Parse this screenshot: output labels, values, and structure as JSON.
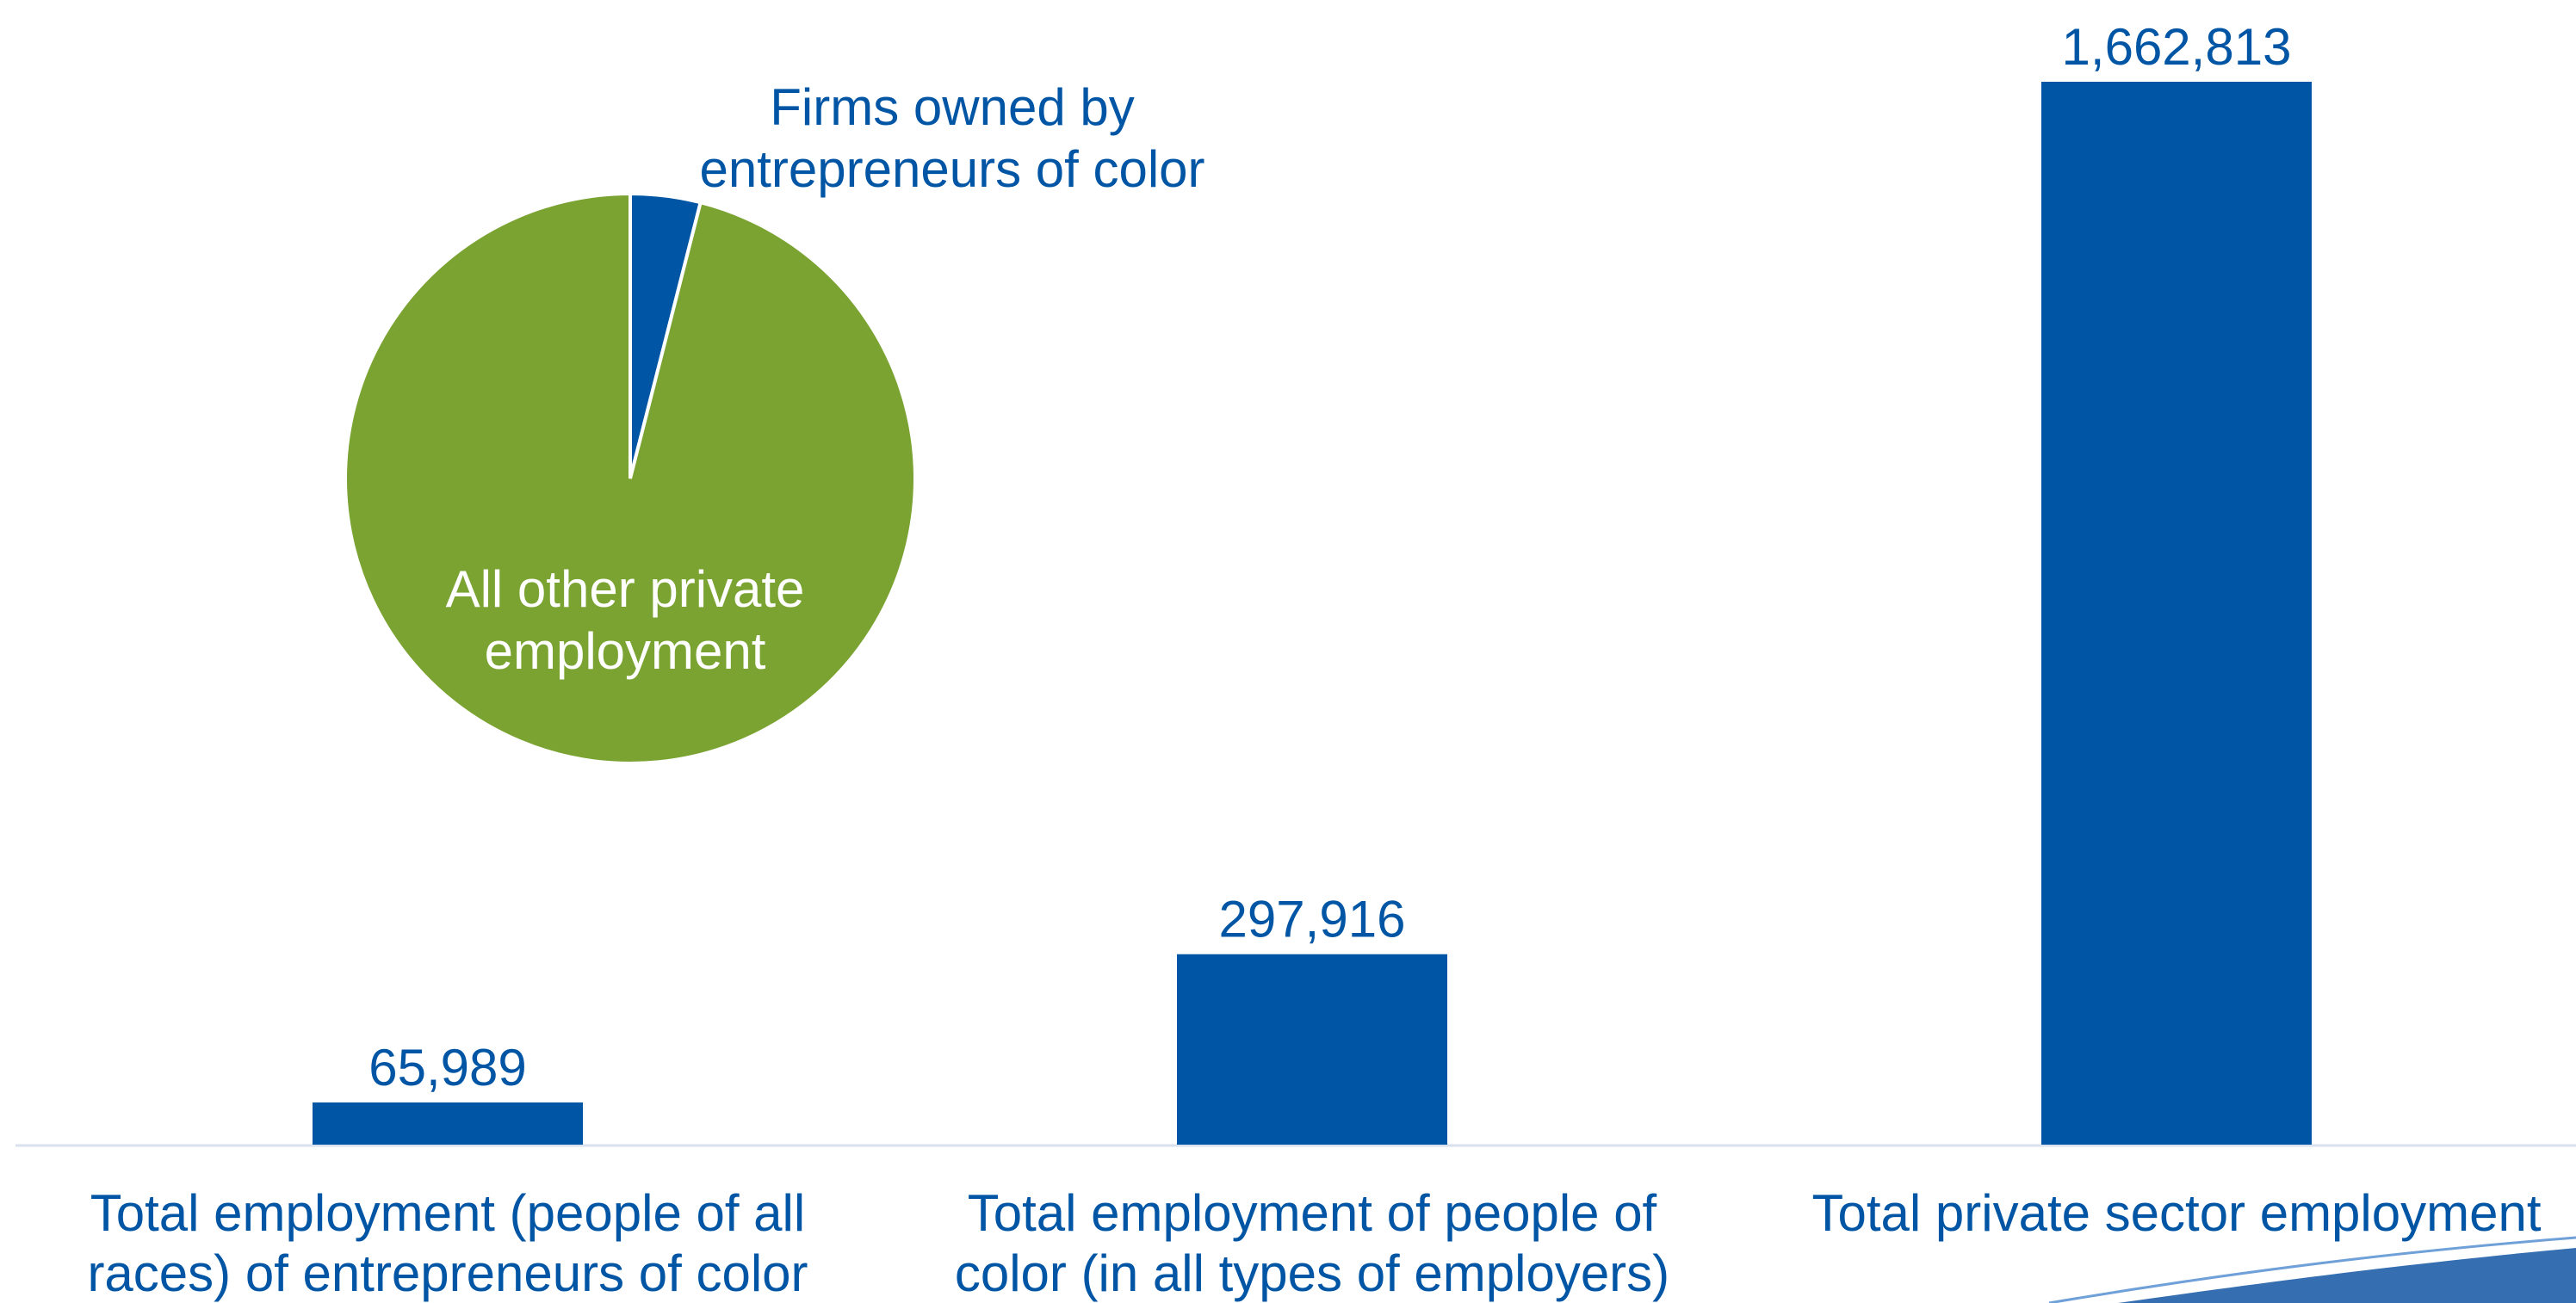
{
  "chart_data": [
    {
      "type": "bar",
      "categories": [
        [
          "Total employment (people of all",
          "races) of entrepreneurs of color"
        ],
        [
          "Total employment of people of",
          "color (in all types of employers)"
        ],
        [
          "Total private sector employment"
        ]
      ],
      "values": [
        65989,
        297916,
        1662813
      ],
      "value_labels": [
        "65,989",
        "297,916",
        "1,662,813"
      ],
      "ylim": [
        0,
        1662813
      ],
      "grid": false,
      "colors": {
        "bar": "#0055a4",
        "text": "#0055a4",
        "axis": "#d9e2ec"
      }
    },
    {
      "type": "pie",
      "slices": [
        {
          "label_lines": [
            "Firms owned by",
            "entrepreneurs of color"
          ],
          "value": 65989,
          "color": "#0055a4",
          "label_color": "#0055a4"
        },
        {
          "label_lines": [
            "All other private",
            "employment"
          ],
          "value": 1596824,
          "color": "#7aa332",
          "label_color": "#ffffff"
        }
      ]
    }
  ]
}
